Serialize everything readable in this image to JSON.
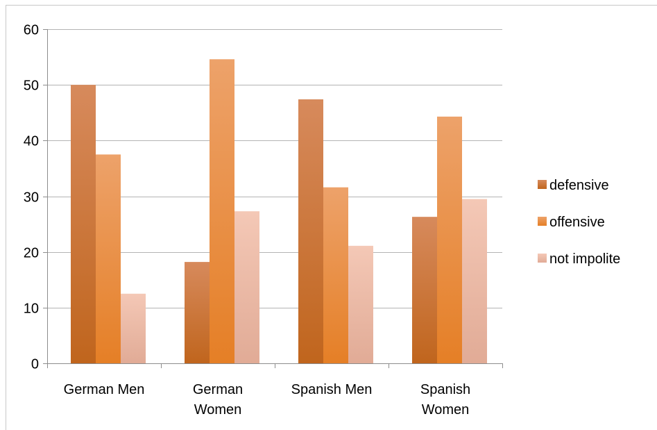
{
  "chart_data": {
    "type": "bar",
    "categories": [
      [
        "German Men"
      ],
      [
        "German",
        "Women"
      ],
      [
        "Spanish Men"
      ],
      [
        "Spanish",
        "Women"
      ]
    ],
    "series": [
      {
        "name": "defensive",
        "values": [
          50,
          18.2,
          47.4,
          26.3
        ]
      },
      {
        "name": "offensive",
        "values": [
          37.5,
          54.6,
          31.6,
          44.3
        ]
      },
      {
        "name": "not impolite",
        "values": [
          12.5,
          27.3,
          21.1,
          29.5
        ]
      }
    ],
    "ylim": [
      0,
      60
    ],
    "yticks": [
      0,
      10,
      20,
      30,
      40,
      50,
      60
    ],
    "grid": true,
    "legend_position": "right",
    "title": "",
    "xlabel": "",
    "ylabel": ""
  },
  "colors": {
    "series": [
      {
        "top": "#d78a5c",
        "bottom": "#c0651d"
      },
      {
        "top": "#eda26a",
        "bottom": "#e57f26"
      },
      {
        "top": "#f4c8b6",
        "bottom": "#e1ab96"
      }
    ],
    "grid": "#b3b3b3",
    "axis": "#8c8c8c",
    "frame": "#c8c8c8"
  }
}
